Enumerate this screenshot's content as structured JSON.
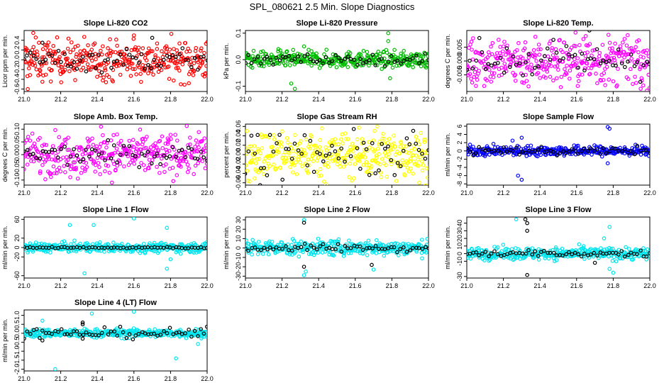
{
  "figure": {
    "title": "SPL_080621  2.5 Min. Slope Diagnostics"
  },
  "chart_data": [
    {
      "type": "scatter",
      "title": "Slope Li-820 CO2",
      "ylabel": "Licor ppm per min.",
      "xlim": [
        21.0,
        22.0
      ],
      "ylim": [
        -0.65,
        0.6
      ],
      "xticks": [
        "21.0",
        "21.2",
        "21.4",
        "21.6",
        "21.8",
        "22.0"
      ],
      "yticks": [
        -0.6,
        -0.4,
        -0.2,
        0.0,
        0.2,
        0.4
      ],
      "yticklabels": [
        "-0.6",
        "-0.4",
        "-0.2",
        "0.0",
        "0.2",
        "0.4"
      ],
      "series": [
        {
          "color": "#ff0000",
          "spread": 0.2,
          "outliers": [
            [
              21.05,
              0.55
            ],
            [
              21.1,
              -0.45
            ],
            [
              21.02,
              -0.6
            ],
            [
              21.9,
              -0.48
            ],
            [
              21.6,
              0.5
            ]
          ]
        },
        {
          "color": "#000000",
          "spread": 0.12,
          "outliers": [
            [
              21.1,
              0.35
            ],
            [
              21.7,
              0.45
            ]
          ]
        }
      ]
    },
    {
      "type": "scatter",
      "title": "Slope Li-820 Pressure",
      "ylabel": "kPa per min.",
      "xlim": [
        21.0,
        22.0
      ],
      "ylim": [
        -0.12,
        0.11
      ],
      "xticks": [
        "21.0",
        "21.2",
        "21.4",
        "21.6",
        "21.8",
        "22.0"
      ],
      "yticks": [
        -0.1,
        0.0,
        0.1
      ],
      "yticklabels": [
        "-0.1",
        "0.0",
        "0.1"
      ],
      "series": [
        {
          "color": "#00bb00",
          "spread": 0.015,
          "outliers": [
            [
              21.25,
              -0.09
            ],
            [
              21.27,
              -0.11
            ],
            [
              21.32,
              0.05
            ],
            [
              21.78,
              0.1
            ],
            [
              21.79,
              -0.07
            ],
            [
              21.18,
              0.04
            ],
            [
              21.78,
              0.07
            ]
          ]
        },
        {
          "color": "#000000",
          "spread": 0.01,
          "outliers": []
        }
      ]
    },
    {
      "type": "scatter",
      "title": "Slope Li-820 Temp.",
      "ylabel": "degrees C per min.",
      "xlim": [
        21.0,
        22.0
      ],
      "ylim": [
        -0.011,
        0.011
      ],
      "xticks": [
        "21.0",
        "21.2",
        "21.4",
        "21.6",
        "21.8",
        "22.0"
      ],
      "yticks": [
        -0.005,
        0.0,
        0.005
      ],
      "yticklabels": [
        "-0.005",
        "0.000",
        "0.005"
      ],
      "series": [
        {
          "color": "#ff00ff",
          "spread": 0.0045,
          "outliers": [
            [
              21.05,
              -0.009
            ],
            [
              21.95,
              -0.01
            ],
            [
              21.65,
              0.009
            ]
          ]
        },
        {
          "color": "#000000",
          "spread": 0.003,
          "outliers": [
            [
              21.67,
              0.011
            ]
          ]
        }
      ]
    },
    {
      "type": "scatter",
      "title": "Slope Amb. Box Temp.",
      "ylabel": "degrees C per min.",
      "xlim": [
        21.0,
        22.0
      ],
      "ylim": [
        -0.12,
        0.12
      ],
      "xticks": [
        "21.0",
        "21.2",
        "21.4",
        "21.6",
        "21.8",
        "22.0"
      ],
      "yticks": [
        -0.1,
        -0.05,
        0.0,
        0.05,
        0.1
      ],
      "yticklabels": [
        "-0.10",
        "-0.05",
        "0.00",
        "0.05",
        "0.10"
      ],
      "series": [
        {
          "color": "#ff00ff",
          "spread": 0.04,
          "outliers": [
            [
              21.42,
              0.11
            ],
            [
              21.48,
              -0.11
            ]
          ]
        },
        {
          "color": "#000000",
          "spread": 0.02,
          "outliers": []
        }
      ]
    },
    {
      "type": "scatter",
      "title": "Slope Gas Stream RH",
      "ylabel": "percent per min.",
      "xlim": [
        21.0,
        22.0
      ],
      "ylim": [
        -0.065,
        0.065
      ],
      "xticks": [
        "21.0",
        "21.2",
        "21.4",
        "21.6",
        "21.8",
        "22.0"
      ],
      "yticks": [
        -0.06,
        -0.04,
        -0.02,
        0.0,
        0.02,
        0.04,
        0.06
      ],
      "yticklabels": [
        "-0.06",
        "-0.04",
        "-0.02",
        "0.00",
        "0.02",
        "0.04",
        "0.06"
      ],
      "series": [
        {
          "color": "#ffff00",
          "spread": 0.025,
          "outliers": [
            [
              21.72,
              0.06
            ],
            [
              21.95,
              -0.06
            ]
          ]
        },
        {
          "color": "#000000",
          "spread": 0.025,
          "outliers": [
            [
              21.08,
              -0.065
            ]
          ]
        }
      ]
    },
    {
      "type": "scatter",
      "title": "Slope Sample Flow",
      "ylabel": "ml/min per min.",
      "xlim": [
        21.0,
        22.0
      ],
      "ylim": [
        -8.3,
        6.5
      ],
      "xticks": [
        "21.0",
        "21.2",
        "21.4",
        "21.6",
        "21.8",
        "22.0"
      ],
      "yticks": [
        -8,
        -6,
        -4,
        -2,
        0,
        2,
        4,
        6
      ],
      "yticklabels": [
        "-8",
        "-6",
        "-4",
        "-2",
        "0",
        "2",
        "4",
        "6"
      ],
      "series": [
        {
          "color": "#0000ff",
          "spread": 0.6,
          "outliers": [
            [
              21.28,
              -6.0
            ],
            [
              21.3,
              -7.0
            ],
            [
              21.77,
              5.8
            ],
            [
              21.78,
              5.4
            ],
            [
              21.3,
              3.2
            ],
            [
              21.25,
              2.5
            ],
            [
              21.77,
              -3.0
            ]
          ]
        },
        {
          "color": "#000000",
          "spread": 0.5,
          "outliers": []
        }
      ]
    },
    {
      "type": "scatter",
      "title": "Slope Line 1 Flow",
      "ylabel": "ml/min per min.",
      "xlim": [
        21.0,
        22.0
      ],
      "ylim": [
        -65,
        65
      ],
      "xticks": [
        "21.0",
        "21.2",
        "21.4",
        "21.6",
        "21.8",
        "22.0"
      ],
      "yticks": [
        -60,
        -20,
        0,
        20,
        60
      ],
      "yticklabels": [
        "-60",
        "-20",
        "0",
        "20",
        "60"
      ],
      "series": [
        {
          "color": "#00e5ee",
          "spread": 5,
          "outliers": [
            [
              21.25,
              48
            ],
            [
              21.33,
              -55
            ],
            [
              21.38,
              48
            ],
            [
              21.6,
              62
            ],
            [
              21.78,
              42
            ],
            [
              21.8,
              -25
            ],
            [
              21.78,
              -45
            ]
          ]
        },
        {
          "color": "#000000",
          "spread": 1,
          "outliers": []
        }
      ]
    },
    {
      "type": "scatter",
      "title": "Slope Line 2 Flow",
      "ylabel": "ml/min per min.",
      "xlim": [
        21.0,
        22.0
      ],
      "ylim": [
        -32,
        33
      ],
      "xticks": [
        "21.0",
        "21.2",
        "21.4",
        "21.6",
        "21.8",
        "22.0"
      ],
      "yticks": [
        -30,
        -20,
        -10,
        0,
        10,
        20,
        30
      ],
      "yticklabels": [
        "-30",
        "-20",
        "-10",
        "0",
        "10",
        "20",
        "30"
      ],
      "series": [
        {
          "color": "#00e5ee",
          "spread": 4,
          "outliers": [
            [
              21.32,
              30
            ],
            [
              21.33,
              -25
            ],
            [
              21.7,
              -23
            ],
            [
              21.32,
              -29
            ]
          ]
        },
        {
          "color": "#000000",
          "spread": 2,
          "outliers": [
            [
              21.32,
              27
            ],
            [
              21.32,
              -20
            ],
            [
              21.69,
              -18
            ]
          ]
        }
      ]
    },
    {
      "type": "scatter",
      "title": "Slope Line 3 Flow",
      "ylabel": "ml/min per min.",
      "xlim": [
        21.0,
        22.0
      ],
      "ylim": [
        -32,
        48
      ],
      "xticks": [
        "21.0",
        "21.2",
        "21.4",
        "21.6",
        "21.8",
        "22.0"
      ],
      "yticks": [
        -30,
        -10,
        0,
        10,
        20,
        30,
        40
      ],
      "yticklabels": [
        "-30",
        "-10",
        "0",
        "10",
        "20",
        "30",
        "40"
      ],
      "series": [
        {
          "color": "#00e5ee",
          "spread": 4,
          "outliers": [
            [
              21.27,
              45
            ],
            [
              21.75,
              20
            ],
            [
              21.78,
              35
            ],
            [
              21.78,
              -20
            ],
            [
              21.8,
              -25
            ]
          ]
        },
        {
          "color": "#000000",
          "spread": 2,
          "outliers": [
            [
              21.32,
              45
            ],
            [
              21.33,
              40
            ],
            [
              21.33,
              30
            ],
            [
              21.33,
              -28
            ],
            [
              21.7,
              -12
            ]
          ]
        }
      ]
    },
    {
      "type": "scatter",
      "title": "Slope Line 4 (LT) Flow",
      "ylabel": "ml/min per min.",
      "xlim": [
        21.0,
        22.0
      ],
      "ylim": [
        -2.1,
        1.3
      ],
      "xticks": [
        "21.0",
        "21.2",
        "21.4",
        "21.6",
        "21.8",
        "22.0"
      ],
      "yticks": [
        -2.0,
        -1.5,
        -1.0,
        -0.5,
        0.0,
        0.5,
        1.0
      ],
      "yticklabels": [
        "-2.0",
        "-1.5",
        "-1.0",
        "-0.5",
        "0.0",
        "0.5",
        "1.0"
      ],
      "series": [
        {
          "color": "#00e5ee",
          "spread": 0.12,
          "outliers": [
            [
              21.17,
              -2.0
            ],
            [
              21.37,
              1.1
            ],
            [
              21.6,
              1.2
            ],
            [
              21.83,
              -1.4
            ],
            [
              21.95,
              -0.6
            ],
            [
              21.1,
              0.7
            ]
          ]
        },
        {
          "color": "#000000",
          "spread": 0.15,
          "outliers": [
            [
              21.32,
              0.6
            ],
            [
              21.32,
              0.5
            ],
            [
              21.32,
              -0.3
            ],
            [
              21.1,
              -0.4
            ]
          ]
        }
      ]
    }
  ]
}
